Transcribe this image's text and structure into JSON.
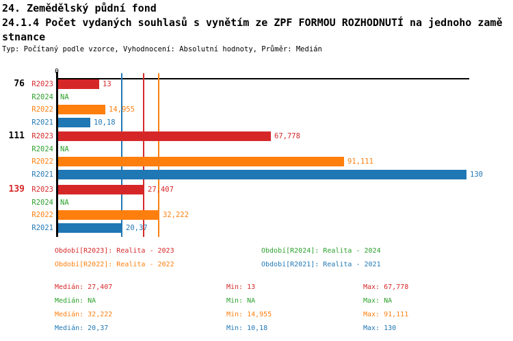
{
  "header": {
    "title": "24. Zemědělský půdní fond",
    "subtitle_line1": "24.1.4 Počet vydaných souhlasů s vynětím ze ZPF FORMOU ROZHODNUTÍ na jednoho zamě",
    "subtitle_line2": "stnance",
    "meta": "Typ: Počítaný podle vzorce, Vyhodnocení: Absolutní hodnoty, Průměr: Medián"
  },
  "colors": {
    "r2023": "#d62728",
    "r2024": "#2ca02c",
    "r2022": "#ff7f0e",
    "r2021": "#1f77b4",
    "axis": "#000000"
  },
  "chart_data": {
    "type": "bar",
    "orientation": "horizontal",
    "x_axis": {
      "zero_label": "0",
      "max_value": 130,
      "grid": false
    },
    "series_colors": {
      "R2023": "#d62728",
      "R2024": "#2ca02c",
      "R2022": "#ff7f0e",
      "R2021": "#1f77b4"
    },
    "groups": [
      {
        "label": "76",
        "label_color": "#000000",
        "bars": [
          {
            "series": "R2023",
            "value": 13,
            "display": "13"
          },
          {
            "series": "R2024",
            "value": null,
            "display": "NA"
          },
          {
            "series": "R2022",
            "value": 14.955,
            "display": "14,955"
          },
          {
            "series": "R2021",
            "value": 10.18,
            "display": "10,18"
          }
        ]
      },
      {
        "label": "111",
        "label_color": "#000000",
        "bars": [
          {
            "series": "R2023",
            "value": 67.778,
            "display": "67,778"
          },
          {
            "series": "R2024",
            "value": null,
            "display": "NA"
          },
          {
            "series": "R2022",
            "value": 91.111,
            "display": "91,111"
          },
          {
            "series": "R2021",
            "value": 130,
            "display": "130"
          }
        ]
      },
      {
        "label": "139",
        "label_color": "#d62728",
        "bars": [
          {
            "series": "R2023",
            "value": 27.407,
            "display": "27,407"
          },
          {
            "series": "R2024",
            "value": null,
            "display": "NA"
          },
          {
            "series": "R2022",
            "value": 32.222,
            "display": "32,222"
          },
          {
            "series": "R2021",
            "value": 20.37,
            "display": "20,37"
          }
        ]
      }
    ],
    "median_lines": [
      {
        "series": "R2021",
        "value": 20.37,
        "color": "#1f77b4"
      },
      {
        "series": "R2023",
        "value": 27.407,
        "color": "#d62728"
      },
      {
        "series": "R2022",
        "value": 32.222,
        "color": "#ff7f0e"
      }
    ]
  },
  "legend": [
    {
      "series": "R2023",
      "label": "Období[R2023]: Realita - 2023",
      "color": "#d62728"
    },
    {
      "series": "R2024",
      "label": "Období[R2024]: Realita - 2024",
      "color": "#2ca02c"
    },
    {
      "series": "R2022",
      "label": "Období[R2022]: Realita - 2022",
      "color": "#ff7f0e"
    },
    {
      "series": "R2021",
      "label": "Období[R2021]: Realita - 2021",
      "color": "#1f77b4"
    }
  ],
  "stats": {
    "labels": {
      "median": "Medián",
      "min": "Min",
      "max": "Max"
    },
    "rows": [
      {
        "series": "R2023",
        "color": "#d62728",
        "median": "27,407",
        "min": "13",
        "max": "67,778"
      },
      {
        "series": "R2024",
        "color": "#2ca02c",
        "median": "NA",
        "min": "NA",
        "max": "NA"
      },
      {
        "series": "R2022",
        "color": "#ff7f0e",
        "median": "32,222",
        "min": "14,955",
        "max": "91,111"
      },
      {
        "series": "R2021",
        "color": "#1f77b4",
        "median": "20,37",
        "min": "10,18",
        "max": "130"
      }
    ]
  }
}
